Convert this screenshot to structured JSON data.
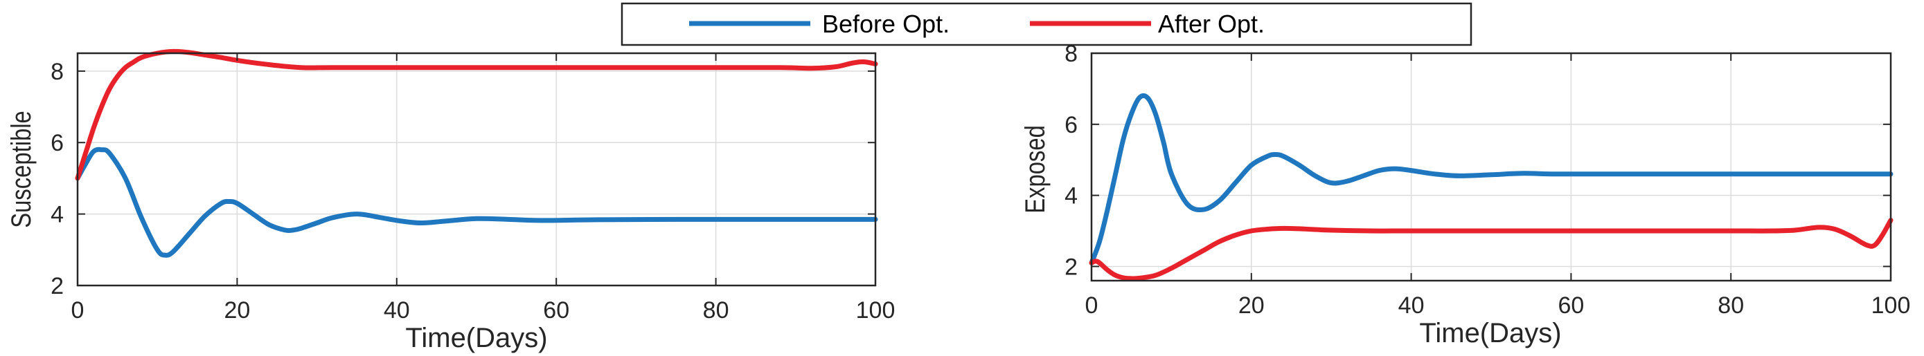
{
  "legend": {
    "entries": [
      {
        "label": "Before Opt.",
        "color": "#1f77c0"
      },
      {
        "label": "After Opt.",
        "color": "#e8222b"
      }
    ]
  },
  "chart_data": [
    {
      "type": "line",
      "xlabel": "Time(Days)",
      "ylabel": "Susceptible",
      "xlim": [
        0,
        100
      ],
      "ylim": [
        2,
        8.5
      ],
      "xticks": [
        "0",
        "20",
        "40",
        "60",
        "80",
        "100"
      ],
      "yticks": [
        "2",
        "4",
        "6",
        "8"
      ],
      "grid": true,
      "series": [
        {
          "name": "Before Opt.",
          "color": "#1f77c0",
          "x": [
            0,
            1,
            2,
            3,
            4,
            6,
            8,
            10,
            11,
            12,
            14,
            16,
            18,
            19,
            20,
            22,
            24,
            26,
            27,
            28,
            30,
            32,
            35,
            38,
            40,
            43,
            46,
            50,
            54,
            58,
            65,
            75,
            85,
            100
          ],
          "y": [
            5.0,
            5.4,
            5.75,
            5.8,
            5.7,
            5.0,
            3.9,
            3.0,
            2.85,
            2.95,
            3.45,
            3.95,
            4.3,
            4.35,
            4.3,
            4.0,
            3.7,
            3.55,
            3.55,
            3.6,
            3.75,
            3.9,
            4.0,
            3.9,
            3.82,
            3.75,
            3.8,
            3.87,
            3.85,
            3.82,
            3.84,
            3.85,
            3.85,
            3.85
          ]
        },
        {
          "name": "After Opt.",
          "color": "#e8222b",
          "x": [
            0,
            1,
            2,
            3,
            4,
            5,
            6,
            7,
            8,
            10,
            12,
            14,
            16,
            18,
            20,
            24,
            28,
            32,
            40,
            50,
            60,
            70,
            80,
            88,
            92,
            95,
            97,
            98.5,
            100
          ],
          "y": [
            5.0,
            5.7,
            6.4,
            7.0,
            7.5,
            7.85,
            8.1,
            8.25,
            8.38,
            8.5,
            8.55,
            8.52,
            8.45,
            8.38,
            8.3,
            8.18,
            8.1,
            8.1,
            8.1,
            8.1,
            8.1,
            8.1,
            8.1,
            8.1,
            8.08,
            8.12,
            8.22,
            8.26,
            8.2
          ]
        }
      ]
    },
    {
      "type": "line",
      "xlabel": "Time(Days)",
      "ylabel": "Exposed",
      "xlim": [
        0,
        100
      ],
      "ylim": [
        1.6,
        8
      ],
      "xticks": [
        "0",
        "20",
        "40",
        "60",
        "80",
        "100"
      ],
      "yticks": [
        "2",
        "4",
        "6",
        "8"
      ],
      "grid": true,
      "series": [
        {
          "name": "Before Opt.",
          "color": "#1f77c0",
          "x": [
            0,
            1,
            2,
            3,
            4,
            5,
            6,
            7,
            8,
            9,
            10,
            12,
            14,
            16,
            18,
            20,
            22,
            23,
            24,
            26,
            28,
            30,
            32,
            34,
            36,
            38,
            40,
            43,
            46,
            50,
            54,
            58,
            65,
            75,
            85,
            100
          ],
          "y": [
            2.1,
            2.7,
            3.6,
            4.6,
            5.6,
            6.3,
            6.75,
            6.75,
            6.3,
            5.5,
            4.6,
            3.75,
            3.6,
            3.85,
            4.35,
            4.85,
            5.1,
            5.15,
            5.1,
            4.85,
            4.55,
            4.35,
            4.4,
            4.55,
            4.7,
            4.75,
            4.7,
            4.6,
            4.55,
            4.58,
            4.62,
            4.6,
            4.6,
            4.6,
            4.6,
            4.6
          ]
        },
        {
          "name": "After Opt.",
          "color": "#e8222b",
          "x": [
            0,
            0.5,
            1,
            2,
            3,
            4,
            5,
            6,
            8,
            10,
            12,
            14,
            16,
            18,
            20,
            22,
            24,
            26,
            30,
            35,
            40,
            50,
            60,
            70,
            80,
            85,
            88,
            91,
            93,
            95,
            97,
            98,
            99,
            100
          ],
          "y": [
            2.1,
            2.15,
            2.1,
            1.9,
            1.75,
            1.68,
            1.66,
            1.67,
            1.75,
            1.95,
            2.2,
            2.45,
            2.7,
            2.88,
            3.0,
            3.05,
            3.07,
            3.06,
            3.02,
            3.0,
            3.0,
            3.0,
            3.0,
            3.0,
            3.0,
            3.0,
            3.02,
            3.1,
            3.05,
            2.85,
            2.6,
            2.6,
            2.9,
            3.3
          ]
        }
      ]
    }
  ]
}
